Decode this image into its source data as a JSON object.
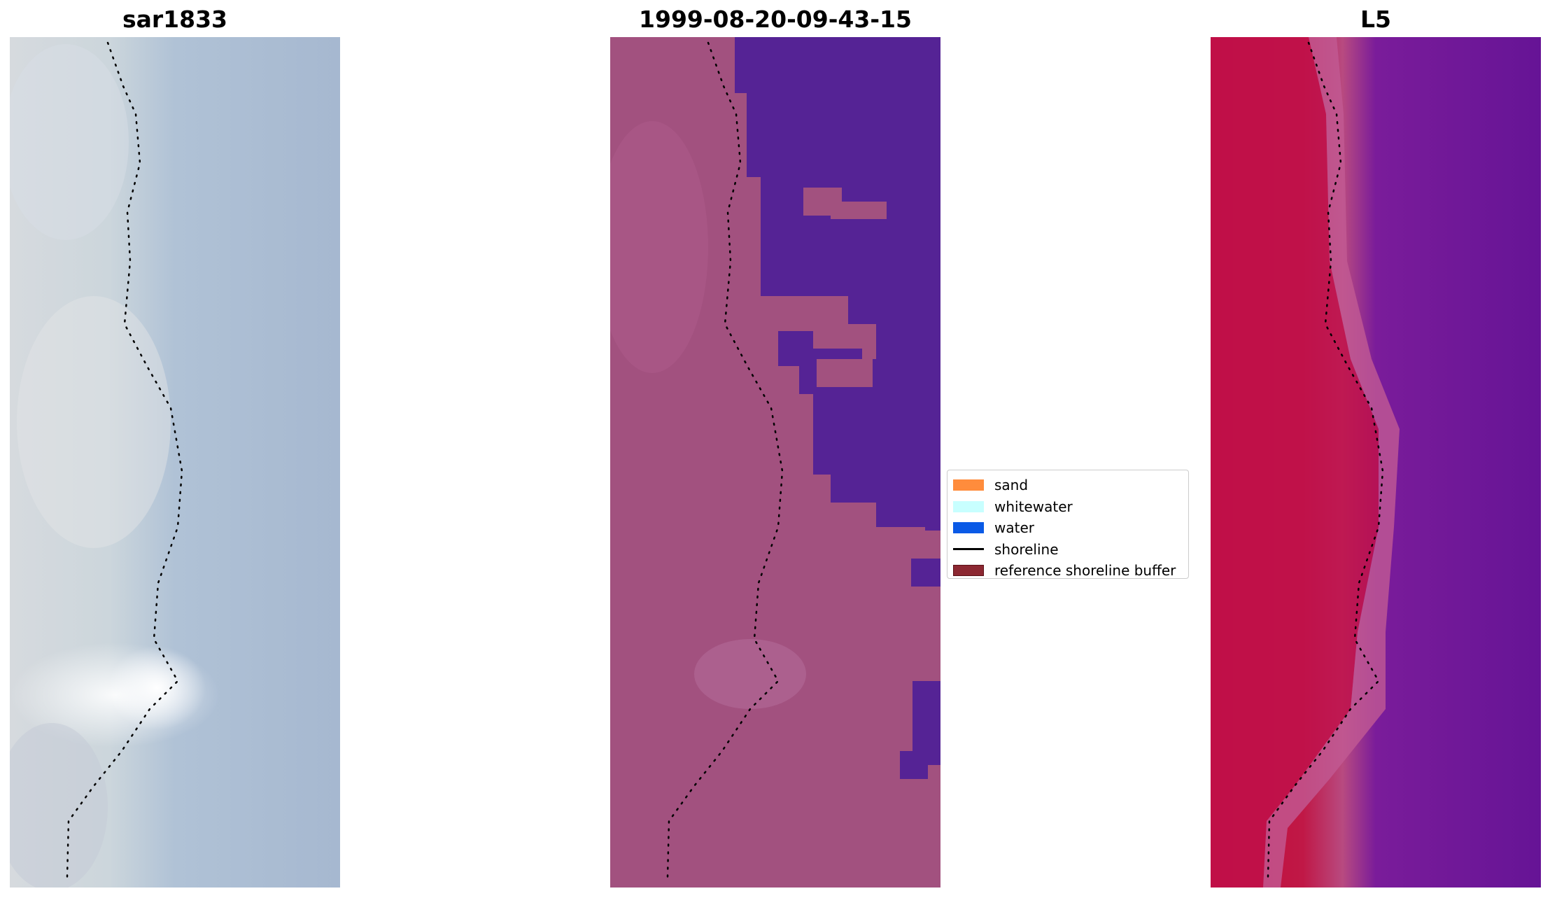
{
  "panels": [
    {
      "title": "sar1833"
    },
    {
      "title": "1999-08-20-09-43-15"
    },
    {
      "title": "L5"
    }
  ],
  "legend": {
    "items": [
      {
        "label": "sand",
        "type": "patch",
        "color": "#ff8c3c"
      },
      {
        "label": "whitewater",
        "type": "patch",
        "color": "#c8ffff"
      },
      {
        "label": "water",
        "type": "patch",
        "color": "#0a5ae6"
      },
      {
        "label": "shoreline",
        "type": "line",
        "color": "#000000"
      },
      {
        "label": "reference shoreline buffer",
        "type": "patch",
        "color": "#8c2832"
      }
    ]
  },
  "colors": {
    "rgb_land": "#d2d8de",
    "rgb_sea": "#a6b8d0",
    "class_land": "#a2517f",
    "class_water": "#552395",
    "index_land": "#c0103c",
    "index_sea": "#6a1494"
  }
}
